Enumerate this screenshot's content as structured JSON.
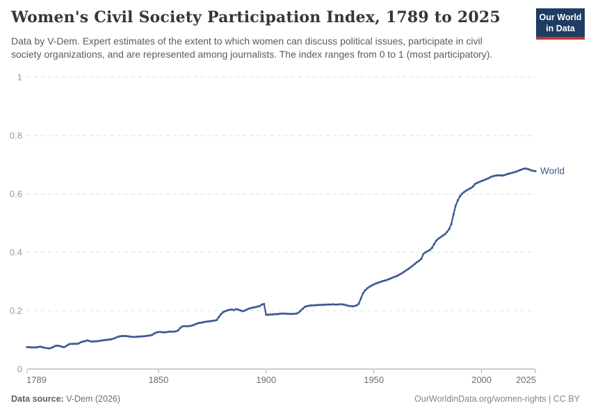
{
  "header": {
    "logo": {
      "line1": "Our World",
      "line2": "in Data"
    }
  },
  "footer": {
    "source_label": "Data source:",
    "source_value": " V-Dem (2026)",
    "attribution": "OurWorldinData.org/women-rights | CC BY"
  },
  "colors": {
    "line": "#3d5a8f",
    "series_label": "#3d5a8f",
    "gridline": "#dddddd",
    "axis_line": "#9e9e9e",
    "tick_mark": "#a8a8a8",
    "y_tick_label": "#999999",
    "x_tick_label": "#6e6e6e",
    "logo_bg": "#1d3d63",
    "logo_red": "#c9352e"
  },
  "chart_data": {
    "type": "line",
    "title": "Women's Civil Society Participation Index, 1789 to 2025",
    "subtitle": "Data by V-Dem. Expert estimates of the extent to which women can discuss political issues, participate in civil society organizations, and are represented among journalists. The index ranges from 0 to 1 (most participatory).",
    "xlabel": "",
    "ylabel": "",
    "xlim": [
      1789,
      2025
    ],
    "ylim": [
      0,
      1
    ],
    "x_ticks": [
      1789,
      1850,
      1900,
      1950,
      2000,
      2025
    ],
    "y_ticks": [
      0,
      0.2,
      0.4,
      0.6,
      0.8,
      1
    ],
    "grid": "horizontal-dashed",
    "legend_position": "end-of-line",
    "series": [
      {
        "name": "World",
        "color": "#3d5a8f",
        "points": [
          [
            1789,
            0.075
          ],
          [
            1790,
            0.075
          ],
          [
            1791,
            0.074
          ],
          [
            1792,
            0.074
          ],
          [
            1793,
            0.074
          ],
          [
            1794,
            0.075
          ],
          [
            1795,
            0.077
          ],
          [
            1796,
            0.075
          ],
          [
            1797,
            0.073
          ],
          [
            1798,
            0.072
          ],
          [
            1799,
            0.071
          ],
          [
            1800,
            0.072
          ],
          [
            1801,
            0.075
          ],
          [
            1802,
            0.079
          ],
          [
            1803,
            0.08
          ],
          [
            1804,
            0.079
          ],
          [
            1805,
            0.077
          ],
          [
            1806,
            0.075
          ],
          [
            1807,
            0.078
          ],
          [
            1808,
            0.083
          ],
          [
            1809,
            0.086
          ],
          [
            1810,
            0.086
          ],
          [
            1811,
            0.087
          ],
          [
            1812,
            0.086
          ],
          [
            1813,
            0.088
          ],
          [
            1814,
            0.092
          ],
          [
            1815,
            0.094
          ],
          [
            1816,
            0.096
          ],
          [
            1817,
            0.098
          ],
          [
            1818,
            0.096
          ],
          [
            1819,
            0.094
          ],
          [
            1820,
            0.095
          ],
          [
            1821,
            0.095
          ],
          [
            1822,
            0.096
          ],
          [
            1823,
            0.097
          ],
          [
            1824,
            0.098
          ],
          [
            1825,
            0.099
          ],
          [
            1826,
            0.1
          ],
          [
            1827,
            0.101
          ],
          [
            1828,
            0.102
          ],
          [
            1829,
            0.104
          ],
          [
            1830,
            0.107
          ],
          [
            1831,
            0.11
          ],
          [
            1832,
            0.112
          ],
          [
            1833,
            0.113
          ],
          [
            1834,
            0.113
          ],
          [
            1835,
            0.113
          ],
          [
            1836,
            0.112
          ],
          [
            1837,
            0.111
          ],
          [
            1838,
            0.11
          ],
          [
            1839,
            0.11
          ],
          [
            1840,
            0.111
          ],
          [
            1841,
            0.111
          ],
          [
            1842,
            0.112
          ],
          [
            1843,
            0.112
          ],
          [
            1844,
            0.113
          ],
          [
            1845,
            0.114
          ],
          [
            1846,
            0.115
          ],
          [
            1847,
            0.117
          ],
          [
            1848,
            0.122
          ],
          [
            1849,
            0.125
          ],
          [
            1850,
            0.127
          ],
          [
            1851,
            0.127
          ],
          [
            1852,
            0.126
          ],
          [
            1853,
            0.126
          ],
          [
            1854,
            0.127
          ],
          [
            1855,
            0.128
          ],
          [
            1856,
            0.128
          ],
          [
            1857,
            0.128
          ],
          [
            1858,
            0.129
          ],
          [
            1859,
            0.132
          ],
          [
            1860,
            0.14
          ],
          [
            1861,
            0.146
          ],
          [
            1862,
            0.147
          ],
          [
            1863,
            0.147
          ],
          [
            1864,
            0.147
          ],
          [
            1865,
            0.148
          ],
          [
            1866,
            0.15
          ],
          [
            1867,
            0.153
          ],
          [
            1868,
            0.156
          ],
          [
            1869,
            0.158
          ],
          [
            1870,
            0.159
          ],
          [
            1871,
            0.161
          ],
          [
            1872,
            0.162
          ],
          [
            1873,
            0.163
          ],
          [
            1874,
            0.164
          ],
          [
            1875,
            0.165
          ],
          [
            1876,
            0.166
          ],
          [
            1877,
            0.168
          ],
          [
            1878,
            0.178
          ],
          [
            1879,
            0.188
          ],
          [
            1880,
            0.195
          ],
          [
            1881,
            0.198
          ],
          [
            1882,
            0.201
          ],
          [
            1883,
            0.203
          ],
          [
            1884,
            0.204
          ],
          [
            1885,
            0.202
          ],
          [
            1886,
            0.205
          ],
          [
            1887,
            0.204
          ],
          [
            1888,
            0.201
          ],
          [
            1889,
            0.198
          ],
          [
            1890,
            0.2
          ],
          [
            1891,
            0.204
          ],
          [
            1892,
            0.207
          ],
          [
            1893,
            0.209
          ],
          [
            1894,
            0.211
          ],
          [
            1895,
            0.212
          ],
          [
            1896,
            0.214
          ],
          [
            1897,
            0.216
          ],
          [
            1898,
            0.221
          ],
          [
            1899,
            0.223
          ],
          [
            1900,
            0.186
          ],
          [
            1901,
            0.186
          ],
          [
            1902,
            0.187
          ],
          [
            1903,
            0.187
          ],
          [
            1904,
            0.188
          ],
          [
            1905,
            0.188
          ],
          [
            1906,
            0.189
          ],
          [
            1907,
            0.19
          ],
          [
            1908,
            0.19
          ],
          [
            1909,
            0.19
          ],
          [
            1910,
            0.189
          ],
          [
            1911,
            0.189
          ],
          [
            1912,
            0.189
          ],
          [
            1913,
            0.189
          ],
          [
            1914,
            0.19
          ],
          [
            1915,
            0.193
          ],
          [
            1916,
            0.2
          ],
          [
            1917,
            0.207
          ],
          [
            1918,
            0.213
          ],
          [
            1919,
            0.216
          ],
          [
            1920,
            0.217
          ],
          [
            1921,
            0.218
          ],
          [
            1922,
            0.218
          ],
          [
            1923,
            0.219
          ],
          [
            1924,
            0.219
          ],
          [
            1925,
            0.22
          ],
          [
            1926,
            0.22
          ],
          [
            1927,
            0.22
          ],
          [
            1928,
            0.221
          ],
          [
            1929,
            0.221
          ],
          [
            1930,
            0.221
          ],
          [
            1931,
            0.222
          ],
          [
            1932,
            0.221
          ],
          [
            1933,
            0.221
          ],
          [
            1934,
            0.222
          ],
          [
            1935,
            0.222
          ],
          [
            1936,
            0.221
          ],
          [
            1937,
            0.219
          ],
          [
            1938,
            0.217
          ],
          [
            1939,
            0.216
          ],
          [
            1940,
            0.215
          ],
          [
            1941,
            0.216
          ],
          [
            1942,
            0.218
          ],
          [
            1943,
            0.224
          ],
          [
            1944,
            0.242
          ],
          [
            1945,
            0.26
          ],
          [
            1946,
            0.27
          ],
          [
            1947,
            0.277
          ],
          [
            1948,
            0.282
          ],
          [
            1949,
            0.286
          ],
          [
            1950,
            0.29
          ],
          [
            1951,
            0.293
          ],
          [
            1952,
            0.296
          ],
          [
            1953,
            0.298
          ],
          [
            1954,
            0.301
          ],
          [
            1955,
            0.303
          ],
          [
            1956,
            0.305
          ],
          [
            1957,
            0.308
          ],
          [
            1958,
            0.311
          ],
          [
            1959,
            0.314
          ],
          [
            1960,
            0.317
          ],
          [
            1961,
            0.32
          ],
          [
            1962,
            0.324
          ],
          [
            1963,
            0.328
          ],
          [
            1964,
            0.333
          ],
          [
            1965,
            0.338
          ],
          [
            1966,
            0.343
          ],
          [
            1967,
            0.348
          ],
          [
            1968,
            0.354
          ],
          [
            1969,
            0.36
          ],
          [
            1970,
            0.366
          ],
          [
            1971,
            0.371
          ],
          [
            1972,
            0.377
          ],
          [
            1973,
            0.394
          ],
          [
            1974,
            0.4
          ],
          [
            1975,
            0.404
          ],
          [
            1976,
            0.408
          ],
          [
            1977,
            0.415
          ],
          [
            1978,
            0.428
          ],
          [
            1979,
            0.44
          ],
          [
            1980,
            0.447
          ],
          [
            1981,
            0.452
          ],
          [
            1982,
            0.457
          ],
          [
            1983,
            0.462
          ],
          [
            1984,
            0.47
          ],
          [
            1985,
            0.48
          ],
          [
            1986,
            0.497
          ],
          [
            1987,
            0.53
          ],
          [
            1988,
            0.56
          ],
          [
            1989,
            0.578
          ],
          [
            1990,
            0.592
          ],
          [
            1991,
            0.601
          ],
          [
            1992,
            0.607
          ],
          [
            1993,
            0.612
          ],
          [
            1994,
            0.616
          ],
          [
            1995,
            0.62
          ],
          [
            1996,
            0.625
          ],
          [
            1997,
            0.634
          ],
          [
            1998,
            0.638
          ],
          [
            1999,
            0.641
          ],
          [
            2000,
            0.644
          ],
          [
            2001,
            0.647
          ],
          [
            2002,
            0.65
          ],
          [
            2003,
            0.653
          ],
          [
            2004,
            0.657
          ],
          [
            2005,
            0.66
          ],
          [
            2006,
            0.662
          ],
          [
            2007,
            0.663
          ],
          [
            2008,
            0.664
          ],
          [
            2009,
            0.663
          ],
          [
            2010,
            0.663
          ],
          [
            2011,
            0.665
          ],
          [
            2012,
            0.668
          ],
          [
            2013,
            0.67
          ],
          [
            2014,
            0.672
          ],
          [
            2015,
            0.674
          ],
          [
            2016,
            0.676
          ],
          [
            2017,
            0.679
          ],
          [
            2018,
            0.682
          ],
          [
            2019,
            0.685
          ],
          [
            2020,
            0.687
          ],
          [
            2021,
            0.686
          ],
          [
            2022,
            0.684
          ],
          [
            2023,
            0.681
          ],
          [
            2024,
            0.679
          ],
          [
            2025,
            0.678
          ]
        ]
      }
    ]
  }
}
